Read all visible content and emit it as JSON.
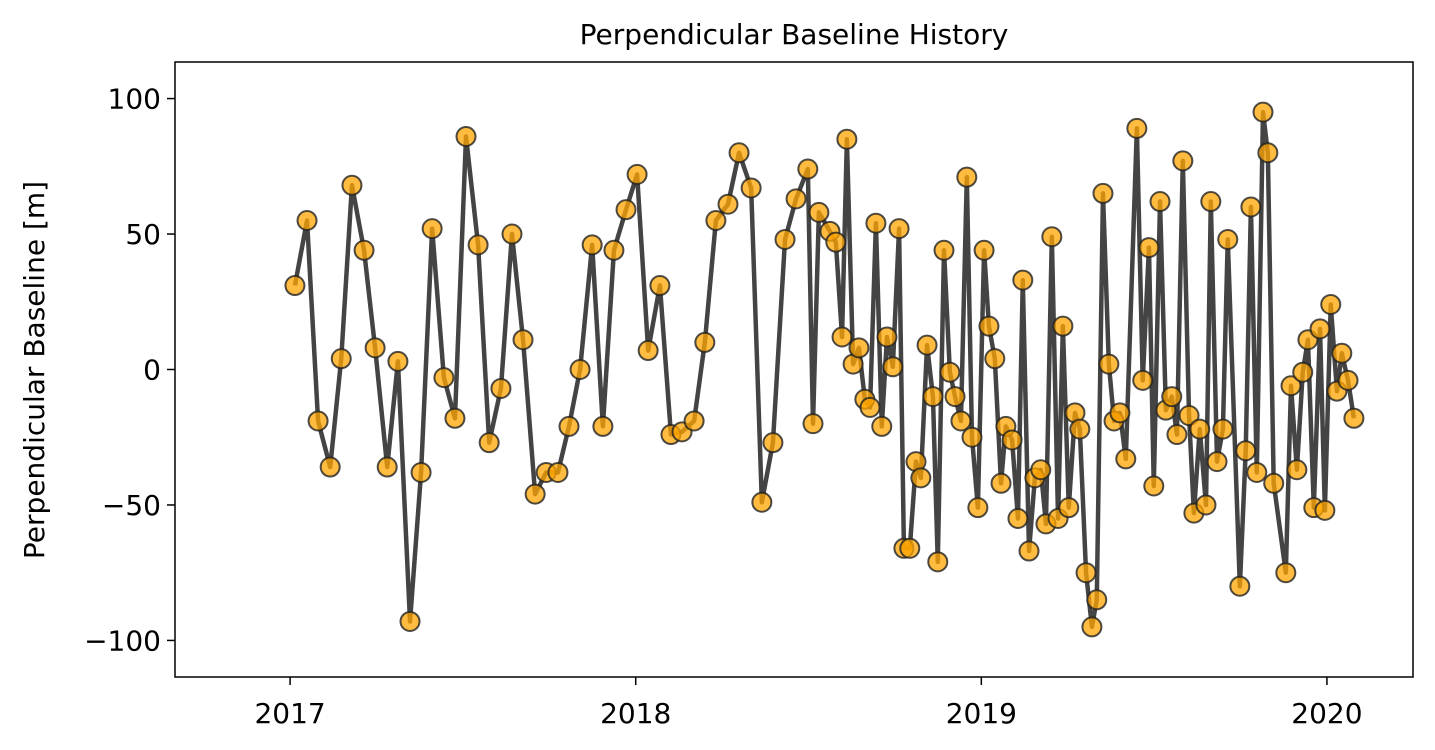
{
  "chart_data": {
    "type": "line",
    "title": "Perpendicular Baseline History",
    "ylabel": "Perpendicular Baseline [m]",
    "xlim": [
      2016.667,
      2020.249
    ],
    "xticks": [
      2017,
      2018,
      2019,
      2020
    ],
    "ylim": [
      -113.5,
      113.5
    ],
    "yticks": [
      {
        "value": -100,
        "label": "−100"
      },
      {
        "value": -50,
        "label": "−50"
      },
      0,
      50,
      100
    ],
    "line_color": "#444444",
    "marker_color": "#ffa500",
    "x": [
      2017.014,
      2017.049,
      2017.081,
      2017.116,
      2017.148,
      2017.179,
      2017.214,
      2017.246,
      2017.281,
      2017.312,
      2017.347,
      2017.379,
      2017.411,
      2017.445,
      2017.477,
      2017.509,
      2017.544,
      2017.576,
      2017.61,
      2017.642,
      2017.674,
      2017.709,
      2017.741,
      2017.775,
      2017.807,
      2017.839,
      2017.874,
      2017.905,
      2017.937,
      2017.972,
      2018.004,
      2018.036,
      2018.07,
      2018.102,
      2018.134,
      2018.169,
      2018.2,
      2018.232,
      2018.267,
      2018.299,
      2018.334,
      2018.365,
      2018.397,
      2018.432,
      2018.464,
      2018.498,
      2018.513,
      2018.53,
      2018.562,
      2018.579,
      2018.597,
      2018.611,
      2018.629,
      2018.646,
      2018.663,
      2018.678,
      2018.695,
      2018.712,
      2018.727,
      2018.744,
      2018.762,
      2018.776,
      2018.793,
      2018.811,
      2018.825,
      2018.843,
      2018.86,
      2018.874,
      2018.892,
      2018.909,
      2018.924,
      2018.941,
      2018.958,
      2018.973,
      2018.99,
      2019.008,
      2019.022,
      2019.039,
      2019.057,
      2019.071,
      2019.089,
      2019.106,
      2019.12,
      2019.138,
      2019.155,
      2019.172,
      2019.187,
      2019.204,
      2019.222,
      2019.236,
      2019.253,
      2019.271,
      2019.285,
      2019.303,
      2019.32,
      2019.334,
      2019.352,
      2019.369,
      2019.384,
      2019.401,
      2019.418,
      2019.45,
      2019.467,
      2019.485,
      2019.499,
      2019.517,
      2019.534,
      2019.551,
      2019.566,
      2019.583,
      2019.601,
      2019.615,
      2019.632,
      2019.65,
      2019.664,
      2019.682,
      2019.699,
      2019.713,
      2019.748,
      2019.765,
      2019.78,
      2019.797,
      2019.815,
      2019.829,
      2019.846,
      2019.881,
      2019.896,
      2019.913,
      2019.93,
      2019.945,
      2019.962,
      2019.98,
      2019.994,
      2020.011,
      2020.029,
      2020.043,
      2020.061,
      2020.078
    ],
    "values": [
      31,
      55,
      -19,
      -36,
      4,
      68,
      44,
      8,
      -36,
      3,
      -93,
      -38,
      52,
      -3,
      -18,
      86,
      46,
      -27,
      -7,
      50,
      11,
      -46,
      -38,
      -38,
      -21,
      0,
      46,
      -21,
      44,
      59,
      72,
      7,
      31,
      -24,
      -23,
      -19,
      10,
      55,
      61,
      80,
      67,
      -49,
      -27,
      48,
      63,
      74,
      -20,
      58,
      51,
      47,
      12,
      85,
      2,
      8,
      -11,
      -14,
      54,
      -21,
      12,
      1,
      52,
      -66,
      -66,
      -34,
      -40,
      9,
      -10,
      -71,
      44,
      -1,
      -10,
      -19,
      71,
      -25,
      -51,
      44,
      16,
      4,
      -42,
      -21,
      -26,
      -55,
      33,
      -67,
      -40,
      -37,
      -57,
      49,
      -55,
      16,
      -51,
      -16,
      -22,
      -75,
      -95,
      -85,
      65,
      2,
      -19,
      -16,
      -33,
      89,
      -4,
      45,
      -43,
      62,
      -15,
      -10,
      -24,
      77,
      -17,
      -53,
      -22,
      -50,
      62,
      -34,
      -22,
      48,
      -80,
      -30,
      60,
      -38,
      95,
      80,
      -42,
      -75,
      -6,
      -37,
      -1,
      11,
      -51,
      15,
      -52,
      24,
      -8,
      6,
      -4,
      -18
    ]
  }
}
